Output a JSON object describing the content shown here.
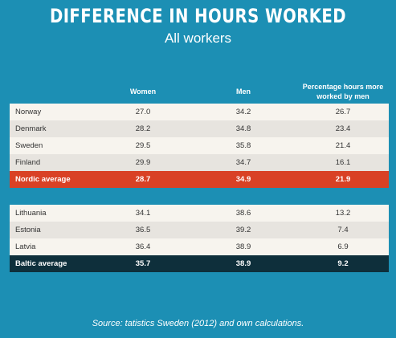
{
  "title": "DIFFERENCE IN HOURS WORKED",
  "subtitle": "All workers",
  "headers": {
    "women": "Women",
    "men": "Men",
    "pct_line1": "Percentage hours more",
    "pct_line2": "worked by men"
  },
  "nordic": [
    {
      "country": "Norway",
      "women": "27.0",
      "men": "34.2",
      "pct": "26.7"
    },
    {
      "country": "Denmark",
      "women": "28.2",
      "men": "34.8",
      "pct": "23.4"
    },
    {
      "country": "Sweden",
      "women": "29.5",
      "men": "35.8",
      "pct": "21.4"
    },
    {
      "country": "Finland",
      "women": "29.9",
      "men": "34.7",
      "pct": "16.1"
    }
  ],
  "nordic_average": {
    "country": "Nordic average",
    "women": "28.7",
    "men": "34.9",
    "pct": "21.9"
  },
  "baltic": [
    {
      "country": "Lithuania",
      "women": "34.1",
      "men": "38.6",
      "pct": "13.2"
    },
    {
      "country": "Estonia",
      "women": "36.5",
      "men": "39.2",
      "pct": "7.4"
    },
    {
      "country": "Latvia",
      "women": "36.4",
      "men": "38.9",
      "pct": "6.9"
    }
  ],
  "baltic_average": {
    "country": "Baltic average",
    "women": "35.7",
    "men": "38.9",
    "pct": "9.2"
  },
  "source": "Source: tatistics Sweden (2012) and own calculations.",
  "colors": {
    "background": "#1c8fb4",
    "nordic_average_row": "#d94125",
    "baltic_average_row": "#0e2f3b",
    "row_light": "#f7f4ee",
    "row_dark": "#e7e4df"
  },
  "chart_data": {
    "type": "table",
    "title": "DIFFERENCE IN HOURS WORKED",
    "subtitle": "All workers",
    "columns": [
      "",
      "Women",
      "Men",
      "Percentage hours more worked by men"
    ],
    "rows": [
      [
        "Norway",
        27.0,
        34.2,
        26.7
      ],
      [
        "Denmark",
        28.2,
        34.8,
        23.4
      ],
      [
        "Sweden",
        29.5,
        35.8,
        21.4
      ],
      [
        "Finland",
        29.9,
        34.7,
        16.1
      ],
      [
        "Nordic average",
        28.7,
        34.9,
        21.9
      ],
      [
        "Lithuania",
        34.1,
        38.6,
        13.2
      ],
      [
        "Estonia",
        36.5,
        39.2,
        7.4
      ],
      [
        "Latvia",
        36.4,
        38.9,
        6.9
      ],
      [
        "Baltic average",
        35.7,
        38.9,
        9.2
      ]
    ]
  }
}
